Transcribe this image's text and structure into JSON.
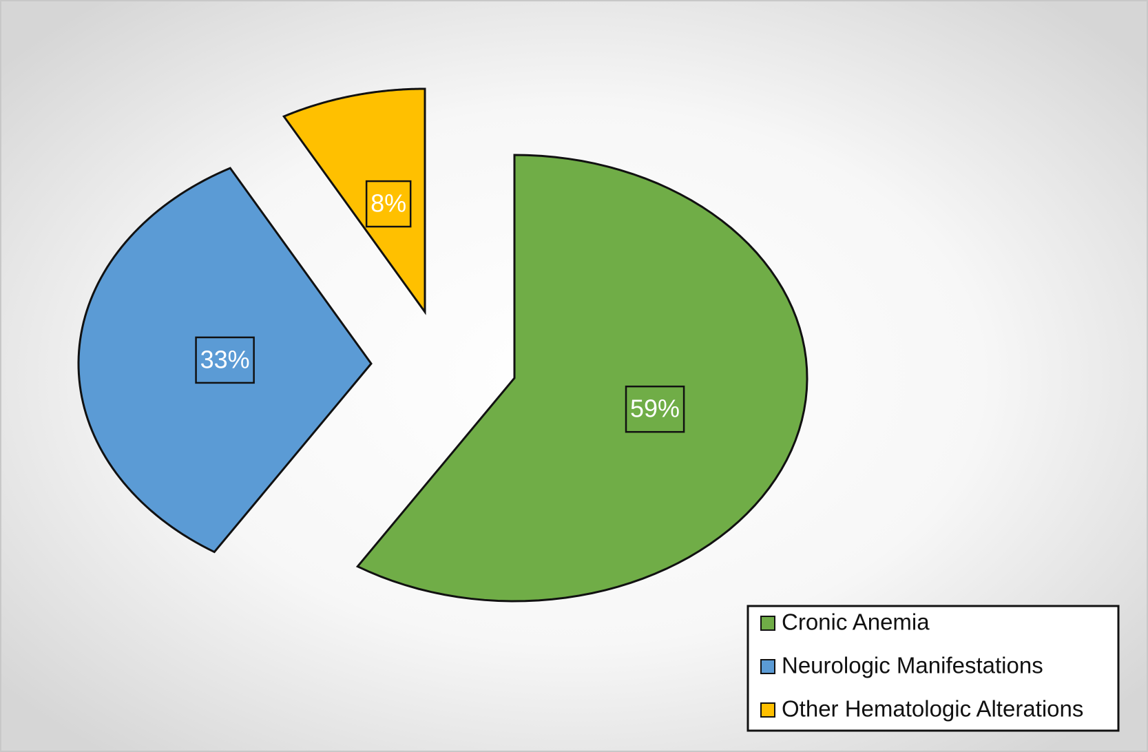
{
  "chart_data": {
    "type": "pie",
    "categories": [
      "Cronic Anemia",
      "Neurologic Manifestations",
      "Other Hematologic Alterations"
    ],
    "values": [
      59,
      33,
      8
    ],
    "value_labels": [
      "59%",
      "33%",
      "8%"
    ],
    "colors": [
      "#70ad47",
      "#5b9bd5",
      "#ffc000"
    ],
    "legend": "bottom-right"
  }
}
